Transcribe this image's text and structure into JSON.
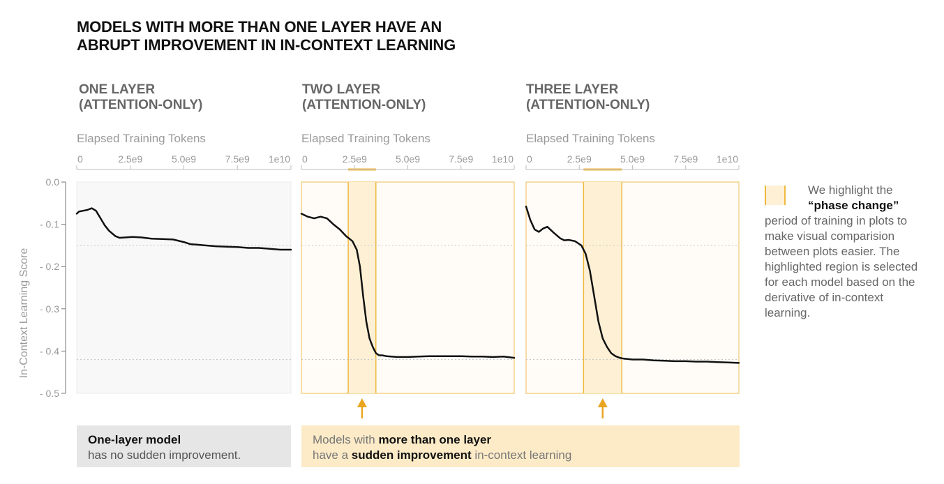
{
  "title": {
    "line1": "MODELS WITH MORE THAN ONE LAYER HAVE AN",
    "line2": "ABRUPT IMPROVEMENT IN IN-CONTEXT LEARNING"
  },
  "y_axis_label": "In-Context Learning Score",
  "legend": {
    "line_a": "We highlight the",
    "bold": "“phase change”",
    "rest": "period of training in plots to make visual comparision between plots easier. The highlighted region is selected for each model based on the derivative of in-context learning."
  },
  "notes": {
    "one_layer_bold": "One-layer model",
    "one_layer_rest": "has no sudden improvement.",
    "multi_pre": "Models with ",
    "multi_bold1": "more than one layer",
    "multi_mid": "have a ",
    "multi_bold2": "sudden improvement",
    "multi_post": " in-context learning"
  },
  "colors": {
    "highlight_fill": "#fdf0d5",
    "highlight_edge": "#f0b840",
    "arrow": "#eaa620",
    "line": "#111111",
    "plain_bg": "#f8f8f8",
    "highlight_bg": "#fffcf8"
  },
  "chart_data": [
    {
      "type": "line",
      "title_line1": "ONE LAYER",
      "title_line2": "(ATTENTION-ONLY)",
      "xlabel": "Elapsed Training Tokens",
      "ylabel": "In-Context Learning Score",
      "xlim": [
        0,
        10000000000
      ],
      "ylim": [
        -0.5,
        0
      ],
      "x_ticks": [
        "0",
        "2.5e9",
        "5.0e9",
        "7.5e9",
        "1e10"
      ],
      "y_ticks": [
        "0.0",
        "- 0.1",
        "- 0.2",
        "- 0.3",
        "- 0.4",
        "- 0.5"
      ],
      "reference_lines": [
        -0.15,
        -0.42
      ],
      "phase_change": null,
      "x": [
        0,
        0.1,
        0.3,
        0.5,
        0.7,
        0.9,
        1.1,
        1.3,
        1.5,
        1.8,
        2.0,
        2.3,
        2.6,
        3.0,
        3.5,
        4.0,
        4.5,
        5.0,
        5.3,
        5.6,
        6.0,
        6.5,
        7.0,
        7.5,
        8.0,
        8.5,
        9.0,
        9.5,
        10.0
      ],
      "y": [
        -0.075,
        -0.07,
        -0.068,
        -0.066,
        -0.062,
        -0.068,
        -0.085,
        -0.102,
        -0.115,
        -0.128,
        -0.132,
        -0.131,
        -0.13,
        -0.131,
        -0.134,
        -0.135,
        -0.136,
        -0.142,
        -0.147,
        -0.148,
        -0.15,
        -0.152,
        -0.153,
        -0.154,
        -0.156,
        -0.156,
        -0.158,
        -0.16,
        -0.16
      ]
    },
    {
      "type": "line",
      "title_line1": "TWO LAYER",
      "title_line2": "(ATTENTION-ONLY)",
      "xlabel": "Elapsed Training Tokens",
      "ylabel": "In-Context Learning Score",
      "xlim": [
        0,
        10000000000
      ],
      "ylim": [
        -0.5,
        0
      ],
      "x_ticks": [
        "0",
        "2.5e9",
        "5.0e9",
        "7.5e9",
        "1e10"
      ],
      "y_ticks": [
        "0.0",
        "- 0.1",
        "- 0.2",
        "- 0.3",
        "- 0.4",
        "- 0.5"
      ],
      "reference_lines": [
        -0.15,
        -0.42
      ],
      "phase_change": [
        2.2,
        3.5
      ],
      "x": [
        0,
        0.3,
        0.6,
        0.9,
        1.2,
        1.5,
        1.8,
        2.1,
        2.4,
        2.6,
        2.75,
        2.9,
        3.05,
        3.2,
        3.35,
        3.5,
        3.65,
        3.8,
        4.0,
        4.5,
        5.0,
        5.5,
        6.0,
        6.5,
        7.0,
        7.5,
        8.0,
        8.5,
        9.0,
        9.5,
        10.0
      ],
      "y": [
        -0.075,
        -0.082,
        -0.086,
        -0.082,
        -0.086,
        -0.1,
        -0.112,
        -0.128,
        -0.14,
        -0.16,
        -0.2,
        -0.27,
        -0.33,
        -0.37,
        -0.39,
        -0.405,
        -0.41,
        -0.41,
        -0.412,
        -0.414,
        -0.414,
        -0.413,
        -0.412,
        -0.412,
        -0.412,
        -0.412,
        -0.413,
        -0.413,
        -0.414,
        -0.413,
        -0.416
      ]
    },
    {
      "type": "line",
      "title_line1": "THREE LAYER",
      "title_line2": "(ATTENTION-ONLY)",
      "xlabel": "Elapsed Training Tokens",
      "ylabel": "In-Context Learning Score",
      "xlim": [
        0,
        10000000000
      ],
      "ylim": [
        -0.5,
        0
      ],
      "x_ticks": [
        "0",
        "2.5e9",
        "5.0e9",
        "7.5e9",
        "1e10"
      ],
      "y_ticks": [
        "0.0",
        "- 0.1",
        "- 0.2",
        "- 0.3",
        "- 0.4",
        "- 0.5"
      ],
      "reference_lines": [
        -0.15,
        -0.42
      ],
      "phase_change": [
        2.7,
        4.5
      ],
      "x": [
        0,
        0.2,
        0.4,
        0.6,
        0.8,
        1.0,
        1.3,
        1.6,
        1.8,
        2.0,
        2.3,
        2.6,
        2.8,
        3.0,
        3.2,
        3.4,
        3.6,
        3.8,
        4.0,
        4.2,
        4.4,
        4.6,
        5.0,
        5.5,
        6.0,
        6.5,
        7.0,
        7.5,
        8.0,
        8.5,
        9.0,
        9.5,
        10.0
      ],
      "y": [
        -0.058,
        -0.09,
        -0.112,
        -0.118,
        -0.11,
        -0.106,
        -0.12,
        -0.133,
        -0.138,
        -0.137,
        -0.14,
        -0.15,
        -0.17,
        -0.21,
        -0.27,
        -0.33,
        -0.37,
        -0.39,
        -0.405,
        -0.412,
        -0.416,
        -0.418,
        -0.42,
        -0.42,
        -0.422,
        -0.423,
        -0.424,
        -0.424,
        -0.425,
        -0.425,
        -0.426,
        -0.427,
        -0.428
      ]
    }
  ]
}
